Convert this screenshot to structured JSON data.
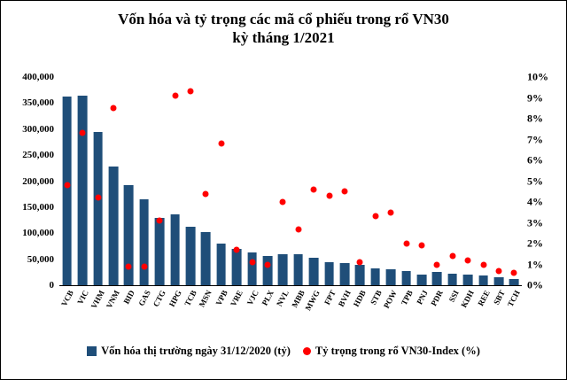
{
  "title": {
    "line1": "Vốn hóa và tỷ trọng các mã cổ phiếu trong rổ VN30",
    "line2": "kỳ tháng 1/2021"
  },
  "chart_data": {
    "type": "combo-bar-scatter",
    "categories": [
      "VCB",
      "VIC",
      "VHM",
      "VNM",
      "BID",
      "GAS",
      "CTG",
      "HPG",
      "TCB",
      "MSN",
      "VPB",
      "VRE",
      "VJC",
      "PLX",
      "NVL",
      "MBB",
      "MWG",
      "FPT",
      "BVH",
      "HDB",
      "STB",
      "POW",
      "TPB",
      "PNJ",
      "PDR",
      "SSI",
      "KDH",
      "REE",
      "SBT",
      "TCH"
    ],
    "series": [
      {
        "name": "Vốn hóa thị trường ngày 31/12/2020 (tỷ)",
        "type": "bar",
        "color": "#1F4E79",
        "axis": "left",
        "values": [
          362000,
          365000,
          295000,
          228000,
          193000,
          165000,
          130000,
          137000,
          112000,
          103000,
          80000,
          70000,
          63000,
          57000,
          60000,
          60000,
          53000,
          45000,
          42000,
          40000,
          33000,
          30000,
          28000,
          20000,
          25000,
          22000,
          21000,
          18000,
          15000,
          12000
        ]
      },
      {
        "name": "Tỷ trọng trong rổ VN30-Index (%)",
        "type": "scatter",
        "color": "#FF0000",
        "axis": "right",
        "values": [
          4.8,
          7.3,
          4.2,
          8.5,
          0.9,
          0.9,
          3.1,
          9.1,
          9.3,
          4.4,
          6.8,
          1.7,
          1.1,
          1.0,
          4.0,
          2.7,
          4.6,
          4.3,
          4.5,
          1.1,
          3.3,
          3.5,
          2.0,
          1.9,
          1.0,
          1.4,
          1.2,
          1.0,
          0.7,
          0.6
        ]
      }
    ],
    "left_axis": {
      "min": 0,
      "max": 400000,
      "step": 50000,
      "labels": [
        "400,000",
        "350,000",
        "300,000",
        "250,000",
        "200,000",
        "150,000",
        "100,000",
        "50,000",
        "0"
      ]
    },
    "right_axis": {
      "min": 0,
      "max": 10,
      "step": 1,
      "labels": [
        "10%",
        "9%",
        "8%",
        "7%",
        "6%",
        "5%",
        "4%",
        "3%",
        "2%",
        "1%",
        "0%"
      ]
    },
    "grid": false,
    "legend_position": "bottom"
  },
  "legend": {
    "bar_label": "Vốn hóa thị trường ngày 31/12/2020 (tỷ)",
    "dot_label": "Tỷ trọng trong rổ VN30-Index (%)"
  }
}
